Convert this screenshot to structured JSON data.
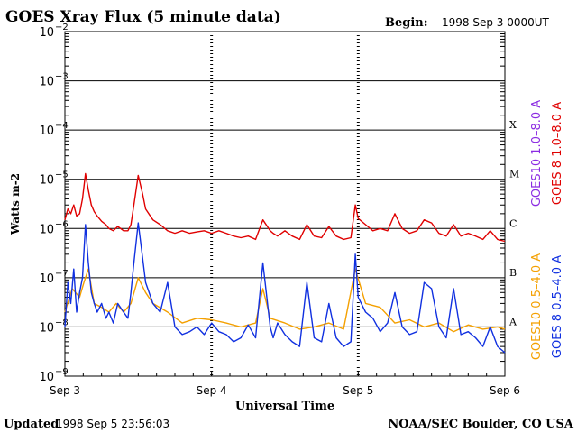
{
  "title": "GOES Xray Flux (5 minute data)",
  "begin_label": "Begin:",
  "begin_value": "1998 Sep 3 0000UT",
  "ylabel": "Watts m-2",
  "xlabel": "Universal Time",
  "footer_left_label": "Updated",
  "footer_left_value": "1998 Sep  5 23:56:03",
  "footer_right": "NOAA/SEC Boulder, CO USA",
  "right_legend": [
    {
      "text": "GOES10 1.0–8.0 A",
      "color": "#8b2be2"
    },
    {
      "text": "GOES 8 1.0–8.0 A",
      "color": "#e00000"
    },
    {
      "text": "GOES10 0.5–4.0 A",
      "color": "#f4a000"
    },
    {
      "text": "GOES 8 0.5–4.0 A",
      "color": "#1030e0"
    }
  ],
  "class_labels": [
    "X",
    "M",
    "C",
    "B",
    "A"
  ],
  "chart_data": {
    "type": "line",
    "y_scale": "log",
    "ylim": [
      1e-09,
      0.01
    ],
    "y_tick_labels": [
      {
        "base": "10",
        "exp": "−2"
      },
      {
        "base": "10",
        "exp": "−3"
      },
      {
        "base": "10",
        "exp": "−4"
      },
      {
        "base": "10",
        "exp": "−5"
      },
      {
        "base": "10",
        "exp": "−6"
      },
      {
        "base": "10",
        "exp": "−7"
      },
      {
        "base": "10",
        "exp": "−8"
      },
      {
        "base": "10",
        "exp": "−9"
      }
    ],
    "x_tick_labels": [
      "Sep 3",
      "Sep 4",
      "Sep 5",
      "Sep 6"
    ],
    "x_range_days": [
      0,
      3
    ],
    "series": [
      {
        "name": "GOES 8 1.0–8.0 A",
        "color": "#e00000",
        "x": [
          0,
          0.02,
          0.04,
          0.06,
          0.08,
          0.1,
          0.12,
          0.14,
          0.16,
          0.18,
          0.2,
          0.22,
          0.25,
          0.28,
          0.3,
          0.33,
          0.36,
          0.4,
          0.43,
          0.45,
          0.47,
          0.5,
          0.53,
          0.55,
          0.6,
          0.65,
          0.7,
          0.75,
          0.8,
          0.85,
          0.9,
          0.95,
          1.0,
          1.05,
          1.1,
          1.15,
          1.2,
          1.25,
          1.3,
          1.35,
          1.4,
          1.42,
          1.45,
          1.5,
          1.55,
          1.6,
          1.65,
          1.7,
          1.75,
          1.8,
          1.85,
          1.9,
          1.95,
          1.98,
          2.0,
          2.05,
          2.1,
          2.15,
          2.2,
          2.25,
          2.3,
          2.35,
          2.4,
          2.45,
          2.5,
          2.55,
          2.6,
          2.65,
          2.7,
          2.75,
          2.8,
          2.85,
          2.9,
          2.95,
          3.0
        ],
        "y": [
          1.5e-06,
          2.5e-06,
          2e-06,
          3e-06,
          1.8e-06,
          2e-06,
          4e-06,
          1.3e-05,
          6e-06,
          3e-06,
          2.2e-06,
          1.8e-06,
          1.4e-06,
          1.2e-06,
          1e-06,
          9e-07,
          1.1e-06,
          9e-07,
          9e-07,
          1.2e-06,
          3e-06,
          1.2e-05,
          5e-06,
          2.5e-06,
          1.5e-06,
          1.2e-06,
          9e-07,
          8e-07,
          9e-07,
          8e-07,
          8.5e-07,
          9e-07,
          8e-07,
          9e-07,
          8e-07,
          7e-07,
          6.5e-07,
          7e-07,
          6e-07,
          1.5e-06,
          9e-07,
          8e-07,
          7e-07,
          9e-07,
          7e-07,
          6e-07,
          1.2e-06,
          7e-07,
          6.5e-07,
          1.1e-06,
          7e-07,
          6e-07,
          6.5e-07,
          3e-06,
          1.6e-06,
          1.2e-06,
          9e-07,
          1e-06,
          9e-07,
          2e-06,
          1e-06,
          8e-07,
          9e-07,
          1.5e-06,
          1.3e-06,
          8e-07,
          7e-07,
          1.2e-06,
          7e-07,
          8e-07,
          7e-07,
          6e-07,
          9e-07,
          6e-07,
          5.5e-07
        ]
      },
      {
        "name": "GOES10 0.5–4.0 A",
        "color": "#f4a000",
        "x": [
          0,
          0.05,
          0.1,
          0.13,
          0.16,
          0.2,
          0.25,
          0.3,
          0.35,
          0.4,
          0.45,
          0.5,
          0.55,
          0.6,
          0.7,
          0.8,
          0.9,
          1.0,
          1.1,
          1.2,
          1.3,
          1.35,
          1.4,
          1.5,
          1.6,
          1.7,
          1.8,
          1.9,
          1.98,
          2.05,
          2.15,
          2.25,
          2.35,
          2.45,
          2.55,
          2.65,
          2.75,
          2.85,
          2.95,
          3.0
        ],
        "y": [
          2e-08,
          6e-08,
          4e-08,
          8e-08,
          1.5e-07,
          3e-08,
          2.5e-08,
          2e-08,
          3e-08,
          2e-08,
          3e-08,
          1e-07,
          5e-08,
          3e-08,
          2e-08,
          1.2e-08,
          1.5e-08,
          1.4e-08,
          1.2e-08,
          1e-08,
          1.2e-08,
          6e-08,
          1.5e-08,
          1.2e-08,
          9e-09,
          1e-08,
          1.2e-08,
          9e-09,
          1.5e-07,
          3e-08,
          2.5e-08,
          1.2e-08,
          1.4e-08,
          1e-08,
          1.2e-08,
          8e-09,
          1.1e-08,
          9e-09,
          1e-08,
          9e-09
        ]
      },
      {
        "name": "GOES 8 0.5–4.0 A",
        "color": "#1030e0",
        "x": [
          0,
          0.02,
          0.04,
          0.06,
          0.08,
          0.1,
          0.12,
          0.14,
          0.16,
          0.18,
          0.2,
          0.22,
          0.25,
          0.28,
          0.3,
          0.33,
          0.36,
          0.4,
          0.43,
          0.45,
          0.47,
          0.5,
          0.53,
          0.55,
          0.6,
          0.65,
          0.7,
          0.75,
          0.8,
          0.85,
          0.9,
          0.95,
          1.0,
          1.05,
          1.1,
          1.15,
          1.2,
          1.25,
          1.3,
          1.35,
          1.4,
          1.42,
          1.45,
          1.5,
          1.55,
          1.6,
          1.65,
          1.7,
          1.75,
          1.8,
          1.85,
          1.9,
          1.95,
          1.98,
          2.0,
          2.05,
          2.1,
          2.15,
          2.2,
          2.25,
          2.3,
          2.35,
          2.4,
          2.45,
          2.5,
          2.55,
          2.6,
          2.65,
          2.7,
          2.75,
          2.8,
          2.85,
          2.9,
          2.95,
          3.0
        ],
        "y": [
          1e-08,
          8e-08,
          3e-08,
          1.5e-07,
          2e-08,
          5e-08,
          1e-07,
          1.2e-06,
          2e-07,
          5e-08,
          3e-08,
          2e-08,
          3e-08,
          1.5e-08,
          2e-08,
          1.2e-08,
          3e-08,
          2e-08,
          1.5e-08,
          5e-08,
          2e-07,
          1.3e-06,
          2.5e-07,
          8e-08,
          3e-08,
          2e-08,
          8e-08,
          1e-08,
          7e-09,
          8e-09,
          1e-08,
          7e-09,
          1.2e-08,
          8e-09,
          7e-09,
          5e-09,
          6e-09,
          1.1e-08,
          6e-09,
          2e-07,
          1e-08,
          6e-09,
          1.2e-08,
          7e-09,
          5e-09,
          4e-09,
          8e-08,
          6e-09,
          5e-09,
          3e-08,
          6e-09,
          4e-09,
          5e-09,
          3e-07,
          4e-08,
          2e-08,
          1.5e-08,
          8e-09,
          1.2e-08,
          5e-08,
          1e-08,
          7e-09,
          8e-09,
          8e-08,
          6e-08,
          1e-08,
          6e-09,
          6e-08,
          7e-09,
          8e-09,
          6e-09,
          4e-09,
          1e-08,
          4e-09,
          3e-09
        ]
      }
    ]
  }
}
